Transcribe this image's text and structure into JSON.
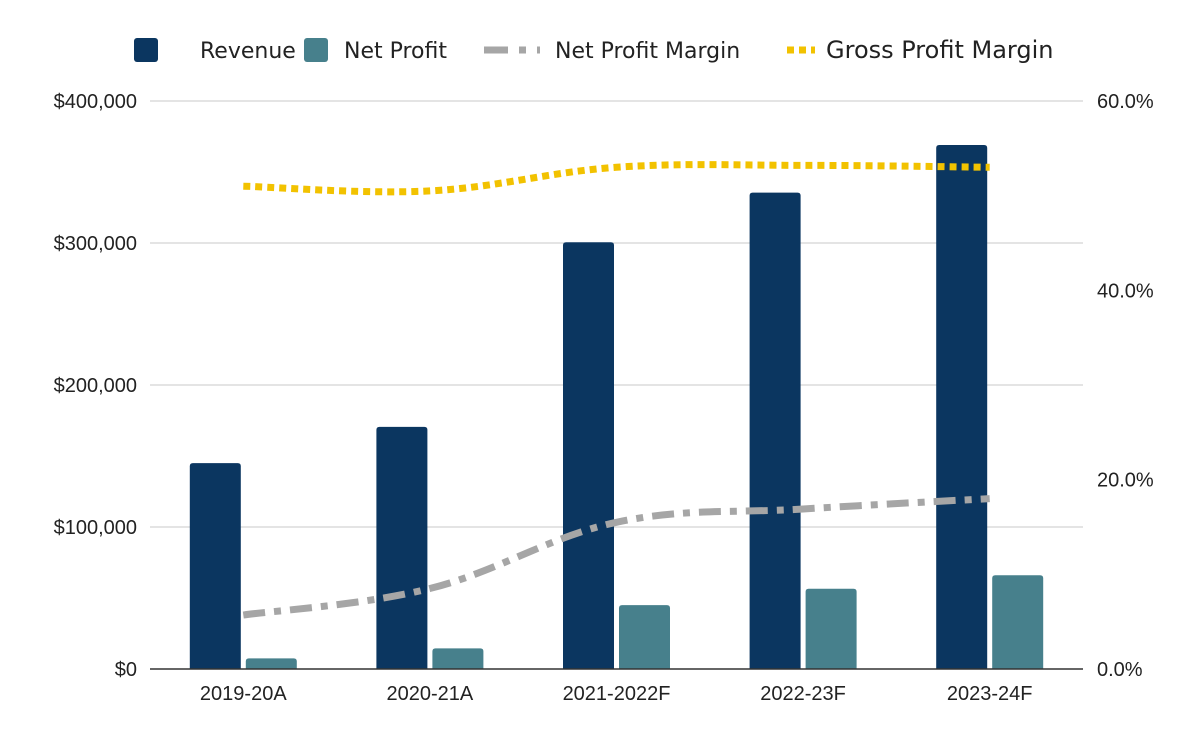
{
  "chart_data": {
    "type": "bar",
    "categories": [
      "2019-20A",
      "2020-21A",
      "2021-2022F",
      "2022-23F",
      "2023-24F"
    ],
    "series": [
      {
        "name": "Revenue",
        "kind": "bar",
        "axis": "left",
        "color": "#0b3660",
        "values": [
          145000,
          170500,
          300500,
          335500,
          369000
        ]
      },
      {
        "name": "Net Profit",
        "kind": "bar",
        "axis": "left",
        "color": "#47808c",
        "values": [
          7500,
          14500,
          45000,
          56500,
          66000
        ]
      },
      {
        "name": "Net Profit Margin",
        "kind": "line",
        "style": "dash-dot",
        "axis": "right",
        "color": "#a6a6a6",
        "values": [
          5.7,
          8.5,
          15.5,
          16.9,
          18.0
        ]
      },
      {
        "name": "Gross Profit Margin",
        "kind": "line",
        "style": "dotted",
        "axis": "right",
        "color": "#f2c200",
        "values": [
          51.0,
          50.5,
          53.0,
          53.2,
          53.0
        ]
      }
    ],
    "y_left": {
      "min": 0,
      "max": 400000,
      "ticks": [
        0,
        100000,
        200000,
        300000,
        400000
      ],
      "tick_labels": [
        "$0",
        "$100,000",
        "$200,000",
        "$300,000",
        "$400,000"
      ]
    },
    "y_right": {
      "min": 0,
      "max": 60,
      "ticks": [
        0,
        20,
        40,
        60
      ],
      "tick_labels": [
        "0.0%",
        "20.0%",
        "40.0%",
        "60.0%"
      ]
    },
    "legend_position": "top",
    "grid": true,
    "title": "",
    "xlabel": "",
    "ylabel": ""
  }
}
